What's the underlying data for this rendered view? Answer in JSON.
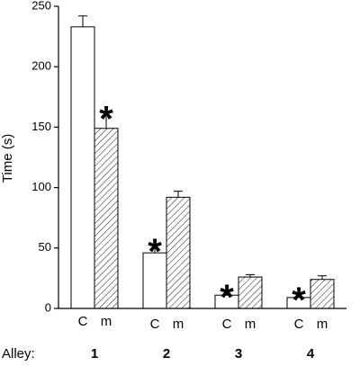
{
  "chart_data": {
    "type": "bar",
    "categories": [
      "1",
      "2",
      "3",
      "4"
    ],
    "category_title": "Alley:",
    "ylabel": "Time (s)",
    "ylim": [
      0,
      250
    ],
    "yticks": [
      0,
      50,
      100,
      150,
      200,
      250
    ],
    "legend": "none",
    "grid": false,
    "series": [
      {
        "label": "C",
        "fill": "white",
        "values": [
          233,
          46,
          11,
          9
        ],
        "errors": [
          9,
          6,
          3,
          3
        ],
        "significant": [
          false,
          true,
          true,
          true
        ]
      },
      {
        "label": "m",
        "fill": "hatched",
        "values": [
          149,
          92,
          26,
          24
        ],
        "errors": [
          13,
          5,
          2,
          3
        ],
        "significant": [
          true,
          false,
          false,
          false
        ]
      }
    ],
    "significance_marker": "*"
  }
}
